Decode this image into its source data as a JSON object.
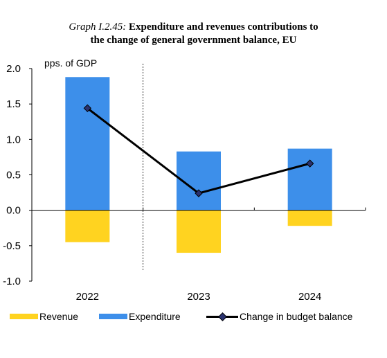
{
  "title": {
    "prefix": "Graph I.2.45:",
    "line1": "Expenditure and revenues contributions to",
    "line2": "the change of general government balance, EU"
  },
  "chart_data": {
    "type": "bar",
    "stacked": true,
    "categories": [
      "2022",
      "2023",
      "2024"
    ],
    "series": [
      {
        "name": "Revenue",
        "type": "bar",
        "color": "#FFD320",
        "values": [
          -0.45,
          -0.6,
          -0.22
        ]
      },
      {
        "name": "Expenditure",
        "type": "bar",
        "color": "#3D8FEA",
        "values": [
          1.88,
          0.83,
          0.87
        ]
      },
      {
        "name": "Change in budget balance",
        "type": "line",
        "color": "#000000",
        "marker_color": "#2A3270",
        "values": [
          1.44,
          0.24,
          0.66
        ]
      }
    ],
    "ylabel": "pps. of GDP",
    "ylim": [
      -1.0,
      2.0
    ],
    "yticks": [
      2.0,
      1.5,
      1.0,
      0.5,
      0.0,
      -0.5,
      -1.0
    ],
    "ytick_labels": [
      "2.0",
      "1.5",
      "1.0",
      "0.5",
      "0.0",
      "-0.5",
      "-1.0"
    ],
    "grid": false,
    "vertical_dashed_divider_after": "2022",
    "legend_position": "bottom"
  },
  "legend": {
    "revenue": "Revenue",
    "expenditure": "Expenditure",
    "balance": "Change in budget balance"
  }
}
